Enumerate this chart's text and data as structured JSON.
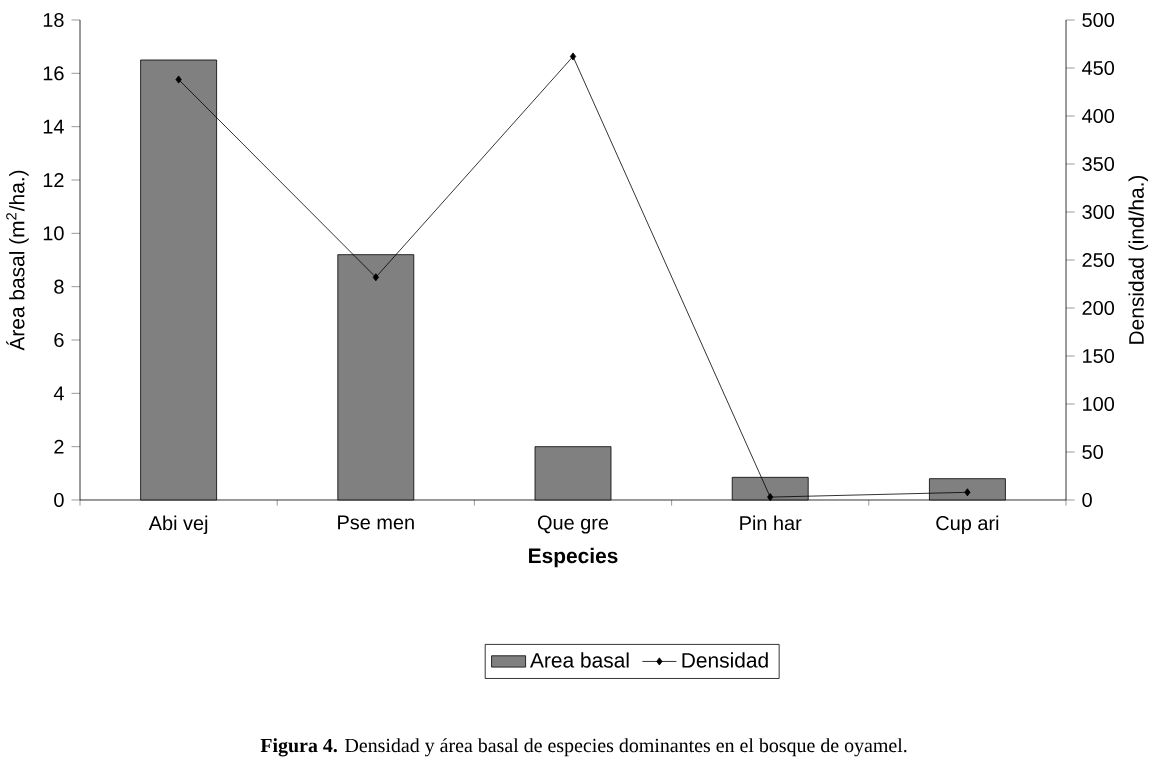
{
  "chart_data": {
    "type": "bar",
    "categories": [
      "Abi vej",
      "Pse men",
      "Que gre",
      "Pin har",
      "Cup ari"
    ],
    "series": [
      {
        "name": "Area basal",
        "type": "bar",
        "color": "#808080",
        "values": [
          16.5,
          9.2,
          2.0,
          0.85,
          0.8
        ]
      },
      {
        "name": "Densidad",
        "type": "line",
        "axis": "y2",
        "color": "#000000",
        "marker": "diamond",
        "values": [
          438,
          232,
          462,
          3,
          8
        ]
      }
    ],
    "xlabel": "Especies",
    "ylabel": "Área basal (m$^{2}$/ha.)",
    "y2label": "Densidad (ind/ha.)",
    "ylim": [
      0,
      18
    ],
    "yticks": [
      0,
      2,
      4,
      6,
      8,
      10,
      12,
      14,
      16,
      18
    ],
    "y2lim": [
      0,
      500
    ],
    "y2ticks": [
      0,
      50,
      100,
      150,
      200,
      250,
      300,
      350,
      400,
      450,
      500
    ],
    "legend": "bottom",
    "annotations": [
      "**Figura 4.** Densidad y área basal de especies dominantes en el bosque de oyamel."
    ]
  }
}
